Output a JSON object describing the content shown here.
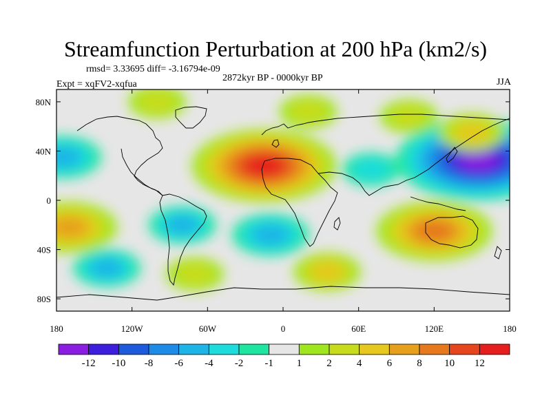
{
  "chart_data": {
    "type": "heatmap",
    "title": "Streamfunction Perturbation at 200 hPa (km2/s)",
    "left_annotations": [
      "rmsd= 3.33695 diff= -3.16794e-09",
      "Expt = xqFV2-xqfua"
    ],
    "center_annotation": "2872kyr BP - 0000kyr BP",
    "right_annotation": "JJA",
    "xlim": [
      -180,
      180
    ],
    "ylim": [
      -90,
      90
    ],
    "x_ticks": [
      {
        "value": -180,
        "label": "180"
      },
      {
        "value": -120,
        "label": "120W"
      },
      {
        "value": -60,
        "label": "60W"
      },
      {
        "value": 0,
        "label": "0"
      },
      {
        "value": 60,
        "label": "60E"
      },
      {
        "value": 120,
        "label": "120E"
      },
      {
        "value": 180,
        "label": "180"
      }
    ],
    "y_ticks": [
      {
        "value": 80,
        "label": "80N"
      },
      {
        "value": 40,
        "label": "40N"
      },
      {
        "value": 0,
        "label": "0"
      },
      {
        "value": -40,
        "label": "40S"
      },
      {
        "value": -80,
        "label": "80S"
      }
    ],
    "colorbar": {
      "levels": [
        "-12",
        "-10",
        "-8",
        "-6",
        "-4",
        "-2",
        "-1",
        "1",
        "2",
        "4",
        "6",
        "8",
        "10",
        "12"
      ],
      "level_values": [
        -12,
        -10,
        -8,
        -6,
        -4,
        -2,
        -1,
        1,
        2,
        4,
        6,
        8,
        10,
        12
      ],
      "colors": [
        "#8a1ee0",
        "#3c1edc",
        "#1e5adc",
        "#1e8ce6",
        "#1eb4e6",
        "#1edcdc",
        "#1ee6a0",
        "#e6e6e6",
        "#a0e61e",
        "#c8dc1e",
        "#e6c81e",
        "#e6a01e",
        "#e6781e",
        "#e6461e",
        "#e61e1e"
      ]
    },
    "features": [
      {
        "name": "north-africa-high",
        "lon": -15,
        "lat": 28,
        "value": 11
      },
      {
        "name": "west-pacific-low",
        "lon": 155,
        "lat": 33,
        "value": -13
      },
      {
        "name": "australia-high",
        "lon": 120,
        "lat": -25,
        "value": 8
      },
      {
        "name": "south-pacific-high",
        "lon": -170,
        "lat": -22,
        "value": 6
      },
      {
        "name": "south-atlantic-low",
        "lon": -10,
        "lat": -28,
        "value": -4
      },
      {
        "name": "south-america-low",
        "lon": -80,
        "lat": -20,
        "value": -3
      },
      {
        "name": "north-pacific-west-low",
        "lon": -175,
        "lat": 35,
        "value": -4
      },
      {
        "name": "north-atlantic-high",
        "lon": 20,
        "lat": 72,
        "value": 2
      },
      {
        "name": "arctic-canada-high",
        "lon": -100,
        "lat": 80,
        "value": 2
      },
      {
        "name": "asia-high",
        "lon": 100,
        "lat": 68,
        "value": 2
      },
      {
        "name": "east-asia-high",
        "lon": 150,
        "lat": 55,
        "value": 3
      },
      {
        "name": "south-pacific-low",
        "lon": -140,
        "lat": -55,
        "value": -3
      },
      {
        "name": "southern-ocean-high",
        "lon": -70,
        "lat": -60,
        "value": 2
      },
      {
        "name": "southern-indian-high",
        "lon": 35,
        "lat": -58,
        "value": 3
      },
      {
        "name": "central-asia-low",
        "lon": 70,
        "lat": 25,
        "value": -2
      }
    ]
  }
}
